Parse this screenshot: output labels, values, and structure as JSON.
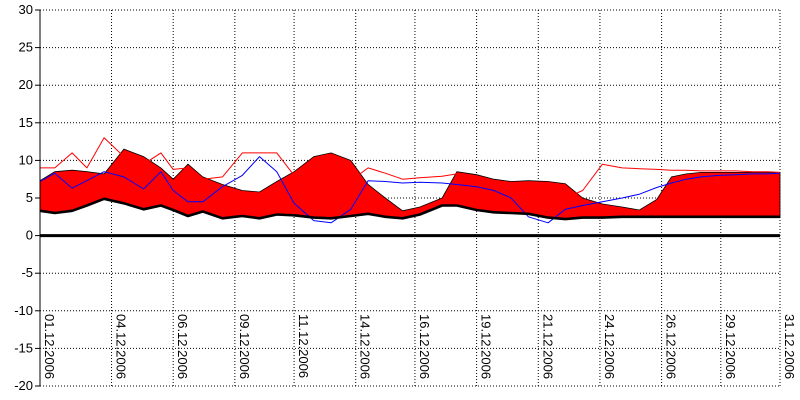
{
  "chart_data": {
    "type": "area",
    "title": "",
    "xlabel": "",
    "ylabel": "",
    "ylim": [
      -20,
      30
    ],
    "yticks": [
      30,
      25,
      20,
      15,
      10,
      5,
      0,
      -5,
      -10,
      -15,
      -20
    ],
    "x_tick_labels": [
      "01.12.2006",
      "04.12.2006",
      "06.12.2006",
      "09.12.2006",
      "11.12.2006",
      "14.12.2006",
      "16.12.2006",
      "19.12.2006",
      "21.12.2006",
      "24.12.2006",
      "26.12.2006",
      "29.12.2006",
      "31.12.2006"
    ],
    "x_tick_days": [
      1,
      3.9,
      6.4,
      8.9,
      11.3,
      13.8,
      16.2,
      18.7,
      21.2,
      23.7,
      26.2,
      28.6,
      31
    ],
    "grid": true,
    "series": [
      {
        "kind": "area_upper",
        "color": "#ff0000",
        "x": [
          1,
          1.6,
          2.3,
          2.9,
          3.6,
          4.4,
          5.2,
          5.9,
          6.4,
          7,
          7.6,
          8.4,
          9.2,
          9.9,
          10.6,
          11.3,
          12.1,
          12.8,
          13.6,
          14.3,
          15,
          15.7,
          16.4,
          17.3,
          17.9,
          18.7,
          19.4,
          20.1,
          20.8,
          21.6,
          22.3,
          23,
          23.8,
          24.6,
          25.3,
          26,
          26.6,
          27.2,
          27.8,
          28.5,
          29.2,
          29.9,
          30.5,
          31
        ],
        "y": [
          7.3,
          8.5,
          8.7,
          8.5,
          8.2,
          11.5,
          10.5,
          9,
          7.5,
          9.5,
          7.8,
          6.8,
          6,
          5.8,
          7.2,
          8.5,
          10.5,
          11,
          10,
          6.8,
          5,
          3.3,
          3.8,
          5,
          8.5,
          8.1,
          7.5,
          7.2,
          7.3,
          7.2,
          6.9,
          5,
          4.2,
          3.8,
          3.4,
          4.8,
          7.8,
          8.2,
          8.4,
          8.4,
          8.4,
          8.4,
          8.4,
          8.3
        ]
      },
      {
        "kind": "line",
        "color": "#ff0000",
        "x": [
          1,
          1.6,
          2.3,
          2.9,
          3.6,
          4.4,
          5.2,
          5.9,
          6.4,
          7,
          7.6,
          8.4,
          9.2,
          9.9,
          10.6,
          11.3,
          12.1,
          12.8,
          13.6,
          14.3,
          15,
          15.7,
          16.4,
          17.3,
          17.9,
          18.7,
          19.4,
          20.1,
          20.8,
          21.6,
          22.3,
          23,
          23.8,
          24.6,
          25.3,
          26,
          26.6,
          27.2,
          27.8,
          28.5,
          29.2,
          29.9,
          30.5,
          31
        ],
        "y": [
          9,
          9,
          11,
          9,
          13,
          10.5,
          9.5,
          11,
          8.8,
          9,
          7.5,
          7.8,
          11,
          11,
          11,
          8,
          6,
          6.3,
          7.3,
          9,
          8.3,
          7.5,
          7.7,
          7.9,
          8.2,
          7.7,
          7.2,
          6,
          5.3,
          5,
          5,
          6,
          9.5,
          9,
          8.9,
          8.8,
          8.7,
          8.7,
          8.6,
          8.6,
          8.6,
          8.5,
          8.5,
          8.4
        ]
      },
      {
        "kind": "line",
        "color": "#0000ff",
        "x": [
          1,
          1.6,
          2.3,
          2.9,
          3.6,
          4.4,
          5.2,
          5.9,
          6.4,
          7,
          7.6,
          8.4,
          9.2,
          9.9,
          10.6,
          11.3,
          12.1,
          12.8,
          13.6,
          14.3,
          15,
          15.7,
          16.4,
          17.3,
          17.9,
          18.7,
          19.4,
          20.1,
          20.8,
          21.6,
          22.3,
          23,
          23.8,
          24.6,
          25.3,
          26,
          26.6,
          27.2,
          27.8,
          28.5,
          29.2,
          29.9,
          30.5,
          31
        ],
        "y": [
          7.2,
          8.3,
          6.3,
          7.3,
          8.5,
          7.8,
          6.2,
          8.5,
          6,
          4.5,
          4.5,
          6.5,
          8,
          10.5,
          8.5,
          4.3,
          2,
          1.7,
          3.5,
          7.3,
          7.2,
          7,
          7.1,
          7,
          6.8,
          6.5,
          6,
          5,
          2.5,
          1.7,
          3.5,
          4,
          4.5,
          5,
          5.5,
          6.4,
          7,
          7.5,
          7.8,
          8,
          8.1,
          8.2,
          8.2,
          8.3
        ]
      },
      {
        "kind": "area_lower",
        "color": "#000000",
        "x": [
          1,
          1.6,
          2.3,
          2.9,
          3.6,
          4.4,
          5.2,
          5.9,
          6.4,
          7,
          7.6,
          8.4,
          9.2,
          9.9,
          10.6,
          11.3,
          12.1,
          12.8,
          13.6,
          14.3,
          15,
          15.7,
          16.4,
          17.3,
          17.9,
          18.7,
          19.4,
          20.1,
          20.8,
          21.6,
          22.3,
          23,
          23.8,
          24.6,
          25.3,
          26,
          26.6,
          27.2,
          27.8,
          28.5,
          29.2,
          29.9,
          30.5,
          31
        ],
        "y": [
          3.3,
          3,
          3.3,
          4,
          4.9,
          4.3,
          3.5,
          4,
          3.4,
          2.6,
          3.2,
          2.3,
          2.6,
          2.3,
          2.8,
          2.7,
          2.4,
          2.3,
          2.6,
          2.9,
          2.5,
          2.3,
          2.8,
          4,
          4,
          3.4,
          3.1,
          3,
          2.9,
          2.4,
          2.2,
          2.4,
          2.4,
          2.5,
          2.5,
          2.5,
          2.5,
          2.5,
          2.5,
          2.5,
          2.5,
          2.5,
          2.5,
          2.5
        ]
      }
    ]
  }
}
